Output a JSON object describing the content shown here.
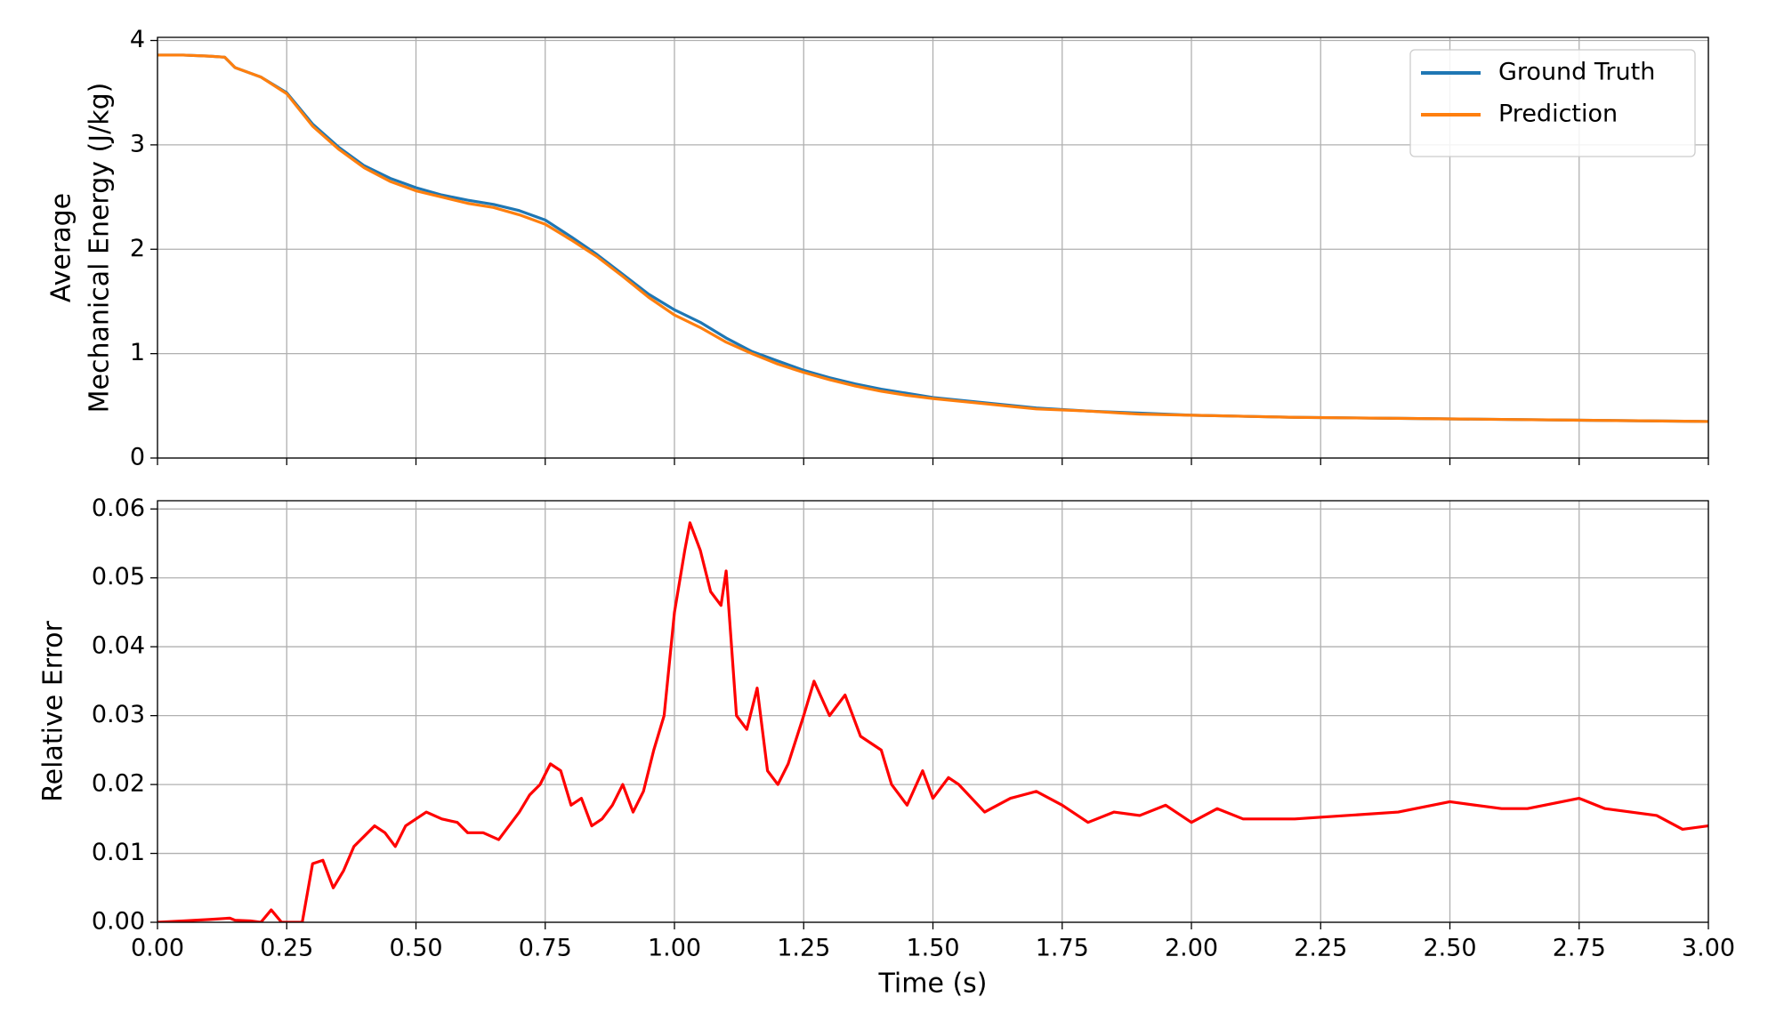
{
  "chart_data": [
    {
      "type": "line",
      "ylabel": [
        "Average",
        "Mechanical Energy (J/kg)"
      ],
      "legend": "upper right",
      "grid": true,
      "xlim": [
        0,
        3
      ],
      "ylim": [
        0,
        4.03
      ],
      "xticks": [
        0,
        0.25,
        0.5,
        0.75,
        1,
        1.25,
        1.5,
        1.75,
        2,
        2.25,
        2.5,
        2.75,
        3
      ],
      "yticks": [
        0,
        1,
        2,
        3,
        4
      ],
      "x": [
        0,
        0.05,
        0.1,
        0.13,
        0.15,
        0.2,
        0.25,
        0.3,
        0.35,
        0.4,
        0.45,
        0.5,
        0.55,
        0.6,
        0.65,
        0.7,
        0.75,
        0.8,
        0.85,
        0.9,
        0.95,
        1.0,
        1.05,
        1.1,
        1.15,
        1.2,
        1.25,
        1.3,
        1.35,
        1.4,
        1.45,
        1.5,
        1.6,
        1.7,
        1.8,
        1.9,
        2.0,
        2.2,
        2.4,
        2.6,
        2.8,
        3.0
      ],
      "series": [
        {
          "name": "Ground Truth",
          "color": "#1f77b4",
          "values": [
            3.86,
            3.86,
            3.85,
            3.84,
            3.74,
            3.65,
            3.5,
            3.2,
            2.98,
            2.8,
            2.68,
            2.59,
            2.52,
            2.47,
            2.43,
            2.37,
            2.28,
            2.12,
            1.95,
            1.76,
            1.57,
            1.42,
            1.3,
            1.15,
            1.02,
            0.93,
            0.84,
            0.77,
            0.71,
            0.66,
            0.62,
            0.58,
            0.53,
            0.48,
            0.45,
            0.43,
            0.41,
            0.39,
            0.38,
            0.37,
            0.36,
            0.35
          ]
        },
        {
          "name": "Prediction",
          "color": "#ff7f0e",
          "values": [
            3.86,
            3.86,
            3.85,
            3.84,
            3.74,
            3.65,
            3.49,
            3.18,
            2.96,
            2.78,
            2.65,
            2.56,
            2.5,
            2.44,
            2.4,
            2.33,
            2.24,
            2.09,
            1.93,
            1.74,
            1.54,
            1.37,
            1.25,
            1.11,
            1.0,
            0.9,
            0.82,
            0.75,
            0.69,
            0.64,
            0.6,
            0.57,
            0.52,
            0.47,
            0.45,
            0.42,
            0.41,
            0.39,
            0.38,
            0.37,
            0.36,
            0.35
          ]
        }
      ]
    },
    {
      "type": "line",
      "ylabel": [
        "Relative Error"
      ],
      "xlabel": "Time (s)",
      "grid": true,
      "xlim": [
        0,
        3
      ],
      "ylim": [
        0,
        0.0612
      ],
      "xticks": [
        {
          "value": 0,
          "label": "0.00"
        },
        {
          "value": 0.25,
          "label": "0.25"
        },
        {
          "value": 0.5,
          "label": "0.50"
        },
        {
          "value": 0.75,
          "label": "0.75"
        },
        {
          "value": 1,
          "label": "1.00"
        },
        {
          "value": 1.25,
          "label": "1.25"
        },
        {
          "value": 1.5,
          "label": "1.50"
        },
        {
          "value": 1.75,
          "label": "1.75"
        },
        {
          "value": 2,
          "label": "2.00"
        },
        {
          "value": 2.25,
          "label": "2.25"
        },
        {
          "value": 2.5,
          "label": "2.50"
        },
        {
          "value": 2.75,
          "label": "2.75"
        },
        {
          "value": 3,
          "label": "3.00"
        }
      ],
      "yticks": [
        {
          "value": 0,
          "label": "0.00"
        },
        0.01,
        0.02,
        0.03,
        0.04,
        0.05,
        0.06
      ],
      "x": [
        0,
        0.05,
        0.1,
        0.14,
        0.15,
        0.18,
        0.2,
        0.22,
        0.24,
        0.26,
        0.28,
        0.3,
        0.32,
        0.34,
        0.36,
        0.38,
        0.4,
        0.42,
        0.44,
        0.46,
        0.48,
        0.5,
        0.52,
        0.55,
        0.58,
        0.6,
        0.63,
        0.66,
        0.7,
        0.72,
        0.74,
        0.76,
        0.78,
        0.8,
        0.82,
        0.84,
        0.86,
        0.88,
        0.9,
        0.92,
        0.94,
        0.96,
        0.98,
        1.0,
        1.02,
        1.03,
        1.05,
        1.07,
        1.09,
        1.1,
        1.12,
        1.14,
        1.16,
        1.18,
        1.2,
        1.22,
        1.25,
        1.27,
        1.3,
        1.33,
        1.36,
        1.4,
        1.42,
        1.45,
        1.48,
        1.5,
        1.53,
        1.55,
        1.6,
        1.65,
        1.7,
        1.75,
        1.8,
        1.85,
        1.9,
        1.95,
        2.0,
        2.05,
        2.1,
        2.2,
        2.3,
        2.4,
        2.5,
        2.6,
        2.65,
        2.75,
        2.8,
        2.9,
        2.95,
        3.0
      ],
      "series": [
        {
          "color": "#ff0000",
          "values": [
            0,
            0.0002,
            0.0004,
            0.0006,
            0.0003,
            0.0002,
            0.0,
            0.0018,
            0.0,
            0.0,
            0.0,
            0.0085,
            0.009,
            0.005,
            0.0075,
            0.011,
            0.0125,
            0.014,
            0.013,
            0.011,
            0.014,
            0.015,
            0.016,
            0.015,
            0.0145,
            0.013,
            0.013,
            0.012,
            0.016,
            0.0185,
            0.02,
            0.023,
            0.022,
            0.017,
            0.018,
            0.014,
            0.015,
            0.017,
            0.02,
            0.016,
            0.019,
            0.025,
            0.03,
            0.045,
            0.054,
            0.058,
            0.054,
            0.048,
            0.046,
            0.051,
            0.03,
            0.028,
            0.034,
            0.022,
            0.02,
            0.023,
            0.03,
            0.035,
            0.03,
            0.033,
            0.027,
            0.025,
            0.02,
            0.017,
            0.022,
            0.018,
            0.021,
            0.02,
            0.016,
            0.018,
            0.019,
            0.017,
            0.0145,
            0.016,
            0.0155,
            0.017,
            0.0145,
            0.0165,
            0.015,
            0.015,
            0.0155,
            0.016,
            0.0175,
            0.0165,
            0.0165,
            0.018,
            0.0165,
            0.0155,
            0.0135,
            0.014
          ]
        }
      ]
    }
  ]
}
